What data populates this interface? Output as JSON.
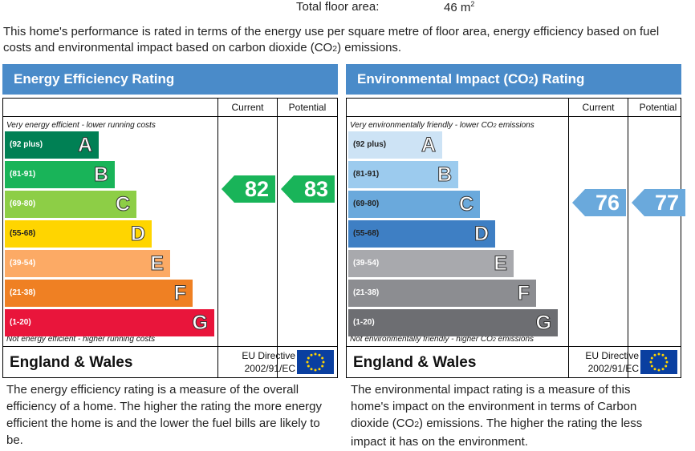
{
  "floor_area": {
    "label": "Total floor area:",
    "value": "46 m",
    "unit_sup": "2"
  },
  "intro": {
    "text_a": "This home's performance is rated in terms of the energy use per square metre of floor area, energy efficiency based on fuel costs and environmental impact based on carbon dioxide (CO",
    "text_sub": "2",
    "text_b": ") emissions."
  },
  "columns": {
    "current": "Current",
    "potential": "Potential"
  },
  "efficiency": {
    "title": "Energy Efficiency Rating",
    "top_note": "Very energy efficient - lower running costs",
    "bottom_note": "Not energy efficient - higher running costs",
    "bands": [
      {
        "letter": "A",
        "range": "(92 plus)",
        "color": "#008054"
      },
      {
        "letter": "B",
        "range": "(81-91)",
        "color": "#19b459"
      },
      {
        "letter": "C",
        "range": "(69-80)",
        "color": "#8dce46"
      },
      {
        "letter": "D",
        "range": "(55-68)",
        "color": "#ffd500"
      },
      {
        "letter": "E",
        "range": "(39-54)",
        "color": "#fcaa65"
      },
      {
        "letter": "F",
        "range": "(21-38)",
        "color": "#ef8023"
      },
      {
        "letter": "G",
        "range": "(1-20)",
        "color": "#e9153b"
      }
    ],
    "current": {
      "value": "82",
      "color": "#19b459"
    },
    "potential": {
      "value": "83",
      "color": "#19b459"
    },
    "footer_region": "England & Wales",
    "directive_line1": "EU Directive",
    "directive_line2": "2002/91/EC",
    "description": "The energy efficiency rating is a measure of the overall efficiency of a home. The higher the rating the more energy efficient the home is and the lower the fuel bills are likely to be."
  },
  "environmental": {
    "title_a": "Environmental Impact (CO",
    "title_sub": "2",
    "title_b": ") Rating",
    "top_note_a": "Very environmentally friendly - lower CO",
    "top_note_sub": "2",
    "top_note_b": " emissions",
    "bottom_note_a": "Not environmentally friendly - higher CO",
    "bottom_note_sub": "2",
    "bottom_note_b": " emissions",
    "bands": [
      {
        "letter": "A",
        "range": "(92 plus)",
        "color": "#cde3f5"
      },
      {
        "letter": "B",
        "range": "(81-91)",
        "color": "#9ccbee"
      },
      {
        "letter": "C",
        "range": "(69-80)",
        "color": "#6aa9dc"
      },
      {
        "letter": "D",
        "range": "(55-68)",
        "color": "#3e7fc4"
      },
      {
        "letter": "E",
        "range": "(39-54)",
        "color": "#a8a9ad"
      },
      {
        "letter": "F",
        "range": "(21-38)",
        "color": "#8c8d91"
      },
      {
        "letter": "G",
        "range": "(1-20)",
        "color": "#6d6e72"
      }
    ],
    "current": {
      "value": "76",
      "color": "#6aa9dc"
    },
    "potential": {
      "value": "77",
      "color": "#6aa9dc"
    },
    "footer_region": "England & Wales",
    "directive_line1": "EU Directive",
    "directive_line2": "2002/91/EC",
    "description_a": "The environmental impact rating is a measure of this home's impact on the environment in terms of Carbon dioxide (CO",
    "description_sub": "2",
    "description_b": ") emissions. The higher the rating the less impact it has on the environment."
  }
}
